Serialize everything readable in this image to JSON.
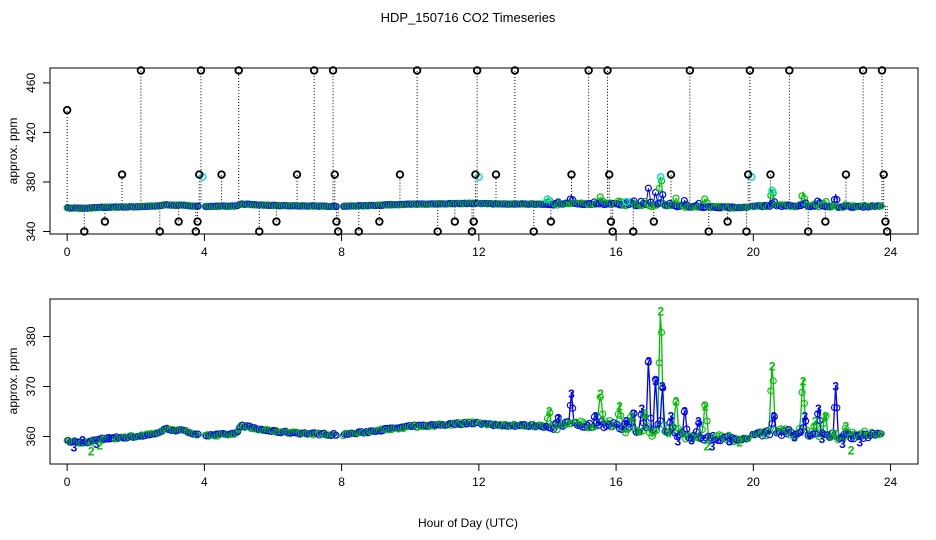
{
  "chart_data": {
    "type": "line",
    "title": "HDP_150716  CO2 Timeseries",
    "xlabel": "Hour of Day (UTC)",
    "colors": {
      "black": "#000000",
      "blue": "#0000ff",
      "green": "#00c000",
      "cyan": "#00e0e0"
    },
    "panels": [
      {
        "ylabel": "approx. ppm",
        "xlim": [
          -0.5,
          24.8
        ],
        "ylim": [
          338,
          472
        ],
        "xticks": [
          0,
          4,
          8,
          12,
          16,
          20,
          24
        ],
        "yticks": [
          340,
          380,
          420,
          460
        ],
        "spike_series": {
          "name": "",
          "points": [
            [
              0.0,
              438
            ],
            [
              0.5,
              340
            ],
            [
              1.1,
              348
            ],
            [
              1.6,
              386
            ],
            [
              2.15,
              470
            ],
            [
              2.7,
              340
            ],
            [
              3.25,
              348
            ],
            [
              3.75,
              340
            ],
            [
              3.8,
              348
            ],
            [
              3.85,
              386
            ],
            [
              3.9,
              470
            ],
            [
              4.5,
              386
            ],
            [
              5.0,
              470
            ],
            [
              5.6,
              340
            ],
            [
              6.1,
              348
            ],
            [
              6.7,
              386
            ],
            [
              7.2,
              470
            ],
            [
              7.75,
              470
            ],
            [
              7.8,
              386
            ],
            [
              7.85,
              348
            ],
            [
              7.9,
              340
            ],
            [
              8.5,
              340
            ],
            [
              9.1,
              348
            ],
            [
              9.7,
              386
            ],
            [
              10.2,
              470
            ],
            [
              10.8,
              340
            ],
            [
              11.3,
              348
            ],
            [
              11.8,
              340
            ],
            [
              11.85,
              348
            ],
            [
              11.9,
              386
            ],
            [
              11.95,
              470
            ],
            [
              12.5,
              386
            ],
            [
              13.05,
              470
            ],
            [
              13.6,
              340
            ],
            [
              14.1,
              348
            ],
            [
              14.7,
              386
            ],
            [
              15.2,
              470
            ],
            [
              15.75,
              470
            ],
            [
              15.8,
              386
            ],
            [
              15.85,
              348
            ],
            [
              15.9,
              340
            ],
            [
              16.5,
              340
            ],
            [
              17.1,
              348
            ],
            [
              17.6,
              386
            ],
            [
              18.15,
              470
            ],
            [
              18.7,
              340
            ],
            [
              19.25,
              348
            ],
            [
              19.8,
              340
            ],
            [
              19.85,
              386
            ],
            [
              19.9,
              470
            ],
            [
              20.5,
              386
            ],
            [
              21.05,
              470
            ],
            [
              21.6,
              340
            ],
            [
              22.1,
              348
            ],
            [
              22.7,
              386
            ],
            [
              23.2,
              470
            ],
            [
              23.75,
              470
            ],
            [
              23.8,
              386
            ],
            [
              23.85,
              348
            ],
            [
              23.9,
              340
            ]
          ]
        },
        "cyan_points": [
          [
            3.95,
            384
          ],
          [
            12.0,
            384
          ],
          [
            19.95,
            384
          ],
          [
            14.0,
            366
          ],
          [
            16.3,
            364
          ],
          [
            17.3,
            384
          ],
          [
            20.55,
            373
          ]
        ]
      },
      {
        "ylabel": "approx. ppm",
        "xlim": [
          -0.5,
          24.8
        ],
        "ylim": [
          354.5,
          387.5
        ],
        "xticks": [
          0,
          4,
          8,
          12,
          16,
          20,
          24
        ],
        "yticks": [
          360,
          370,
          380
        ],
        "marker_blue": "3",
        "marker_green": "2"
      }
    ],
    "series_base": [
      [
        0.0,
        359.0
      ],
      [
        0.5,
        358.8
      ],
      [
        1.0,
        359.5
      ],
      [
        1.5,
        359.8
      ],
      [
        2.0,
        360.0
      ],
      [
        2.5,
        360.4
      ],
      [
        2.9,
        361.5
      ],
      [
        3.3,
        361.2
      ],
      [
        3.8,
        360.5
      ],
      [
        4.1,
        360.2
      ],
      [
        4.6,
        360.4
      ],
      [
        4.9,
        360.6
      ],
      [
        5.1,
        362.2
      ],
      [
        5.5,
        361.6
      ],
      [
        6.0,
        361.0
      ],
      [
        6.5,
        360.8
      ],
      [
        7.0,
        360.6
      ],
      [
        7.8,
        360.4
      ],
      [
        8.1,
        360.4
      ],
      [
        8.6,
        360.8
      ],
      [
        9.0,
        361.2
      ],
      [
        9.5,
        361.6
      ],
      [
        10.0,
        362.0
      ],
      [
        10.5,
        362.2
      ],
      [
        11.0,
        362.4
      ],
      [
        11.5,
        362.6
      ],
      [
        11.95,
        362.8
      ],
      [
        12.05,
        362.6
      ],
      [
        12.5,
        362.3
      ],
      [
        13.0,
        362.2
      ],
      [
        13.5,
        362.2
      ],
      [
        14.0,
        362.0
      ],
      [
        14.5,
        362.2
      ],
      [
        15.0,
        362.4
      ],
      [
        15.5,
        362.5
      ],
      [
        15.95,
        362.4
      ],
      [
        16.0,
        362.0
      ],
      [
        16.4,
        361.2
      ],
      [
        16.8,
        360.8
      ],
      [
        17.2,
        360.5
      ],
      [
        17.6,
        360.4
      ],
      [
        18.0,
        360.2
      ],
      [
        18.5,
        360.0
      ],
      [
        19.0,
        359.6
      ],
      [
        19.5,
        359.4
      ],
      [
        19.85,
        359.5
      ],
      [
        20.0,
        360.5
      ],
      [
        20.5,
        361.0
      ],
      [
        21.0,
        360.8
      ],
      [
        21.5,
        360.4
      ],
      [
        22.0,
        360.2
      ],
      [
        22.5,
        360.0
      ],
      [
        23.0,
        360.2
      ],
      [
        23.5,
        360.4
      ],
      [
        23.75,
        360.5
      ]
    ],
    "gaps": [
      [
        3.85,
        4.0
      ],
      [
        7.85,
        8.05
      ],
      [
        11.97,
        12.02
      ],
      [
        15.96,
        15.99
      ],
      [
        19.87,
        19.98
      ]
    ],
    "spikes_blue": [
      [
        14.3,
        363.5
      ],
      [
        14.7,
        368.5
      ],
      [
        15.4,
        364.0
      ],
      [
        16.3,
        363.0
      ],
      [
        16.5,
        364.5
      ],
      [
        16.75,
        365.5
      ],
      [
        16.95,
        375.0
      ],
      [
        17.15,
        371.0
      ],
      [
        17.35,
        370.0
      ],
      [
        17.6,
        364.0
      ],
      [
        18.0,
        365.0
      ],
      [
        18.4,
        363.0
      ],
      [
        20.6,
        364.0
      ],
      [
        21.5,
        364.0
      ],
      [
        21.9,
        365.5
      ],
      [
        22.4,
        370.0
      ]
    ],
    "spikes_green": [
      [
        14.05,
        365.0
      ],
      [
        15.55,
        368.5
      ],
      [
        16.1,
        366.0
      ],
      [
        16.45,
        364.0
      ],
      [
        16.85,
        364.5
      ],
      [
        17.3,
        385.0
      ],
      [
        17.75,
        367.0
      ],
      [
        18.6,
        366.0
      ],
      [
        20.55,
        374.0
      ],
      [
        21.45,
        371.0
      ],
      [
        21.8,
        363.0
      ],
      [
        22.1,
        364.0
      ],
      [
        22.7,
        362.0
      ]
    ]
  }
}
